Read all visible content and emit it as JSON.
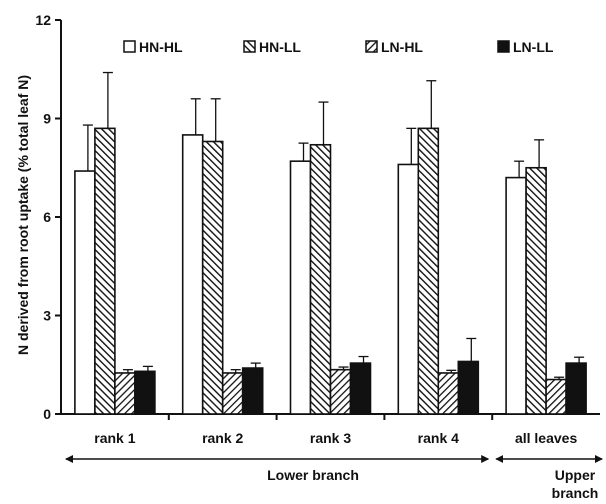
{
  "chart_data": {
    "type": "bar",
    "ylabel": "N derived from root uptake (% total leaf N)",
    "ylim": [
      0,
      12
    ],
    "yticks": [
      "0",
      "3",
      "6",
      "9",
      "12"
    ],
    "categories": [
      "rank 1",
      "rank 2",
      "rank 3",
      "rank 4",
      "all leaves"
    ],
    "series": [
      {
        "name": "HN-HL",
        "values": [
          7.4,
          8.5,
          7.7,
          7.6,
          7.2
        ],
        "errors": [
          1.4,
          1.1,
          0.55,
          1.1,
          0.5
        ]
      },
      {
        "name": "HN-LL",
        "values": [
          8.7,
          8.3,
          8.2,
          8.7,
          7.5
        ],
        "errors": [
          1.7,
          1.3,
          1.3,
          1.45,
          0.85
        ]
      },
      {
        "name": "LN-HL",
        "values": [
          1.25,
          1.25,
          1.35,
          1.25,
          1.05
        ],
        "errors": [
          0.1,
          0.1,
          0.08,
          0.08,
          0.07
        ]
      },
      {
        "name": "LN-LL",
        "values": [
          1.3,
          1.4,
          1.55,
          1.6,
          1.55
        ],
        "errors": [
          0.15,
          0.15,
          0.2,
          0.7,
          0.18
        ]
      }
    ],
    "groups": [
      {
        "label": "Lower branch"
      },
      {
        "label": "Upper\nbranch"
      }
    ],
    "legend_position": "top",
    "grid": false,
    "colors": {
      "fill": "#ffffff",
      "solid": "#111111",
      "stroke": "#111111"
    }
  }
}
